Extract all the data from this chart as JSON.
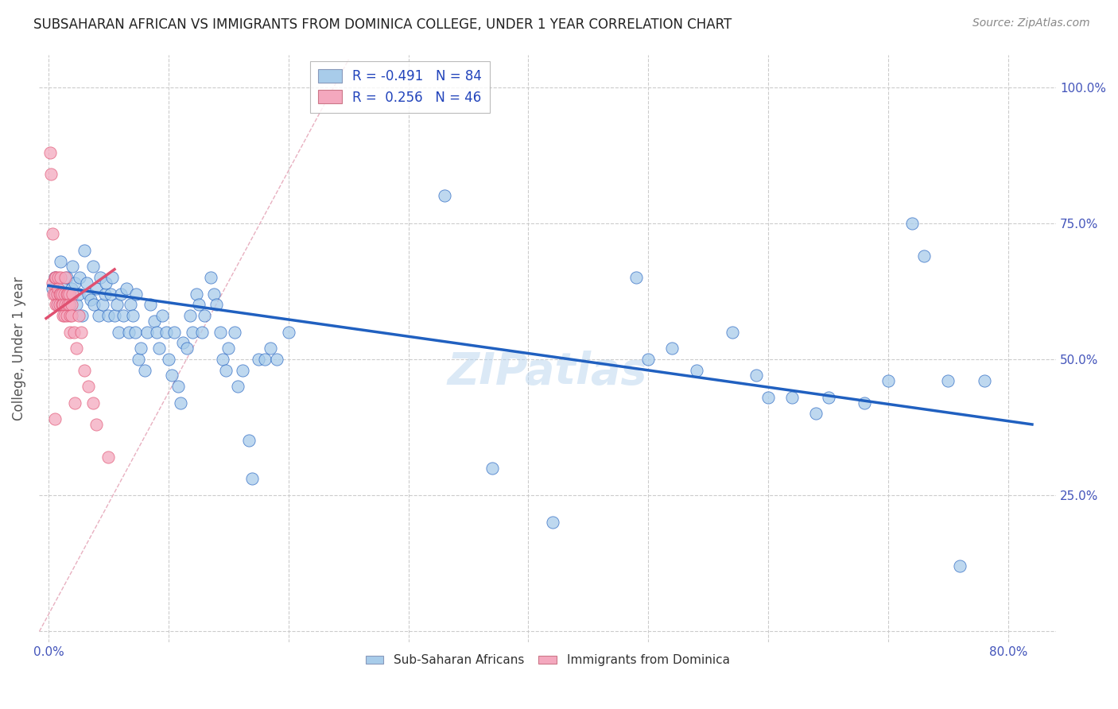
{
  "title": "SUBSAHARAN AFRICAN VS IMMIGRANTS FROM DOMINICA COLLEGE, UNDER 1 YEAR CORRELATION CHART",
  "source": "Source: ZipAtlas.com",
  "ylabel": "College, Under 1 year",
  "x_ticks": [
    0.0,
    0.1,
    0.2,
    0.3,
    0.4,
    0.5,
    0.6,
    0.7,
    0.8
  ],
  "y_ticks": [
    0.0,
    0.25,
    0.5,
    0.75,
    1.0
  ],
  "y_tick_labels_right": [
    "",
    "25.0%",
    "50.0%",
    "75.0%",
    "100.0%"
  ],
  "xlim": [
    -0.008,
    0.84
  ],
  "ylim": [
    -0.02,
    1.06
  ],
  "color_blue": "#A8CCEA",
  "color_pink": "#F4A8BE",
  "line_blue": "#2060C0",
  "line_pink": "#E05070",
  "diagonal_color": "#DDBBCC",
  "watermark": "ZIPatlas",
  "scatter_blue": [
    [
      0.003,
      0.63
    ],
    [
      0.005,
      0.65
    ],
    [
      0.007,
      0.62
    ],
    [
      0.008,
      0.6
    ],
    [
      0.01,
      0.68
    ],
    [
      0.012,
      0.63
    ],
    [
      0.013,
      0.61
    ],
    [
      0.015,
      0.65
    ],
    [
      0.016,
      0.62
    ],
    [
      0.018,
      0.6
    ],
    [
      0.019,
      0.63
    ],
    [
      0.02,
      0.67
    ],
    [
      0.022,
      0.64
    ],
    [
      0.023,
      0.6
    ],
    [
      0.025,
      0.62
    ],
    [
      0.026,
      0.65
    ],
    [
      0.028,
      0.58
    ],
    [
      0.03,
      0.7
    ],
    [
      0.032,
      0.64
    ],
    [
      0.033,
      0.62
    ],
    [
      0.035,
      0.61
    ],
    [
      0.037,
      0.67
    ],
    [
      0.038,
      0.6
    ],
    [
      0.04,
      0.63
    ],
    [
      0.042,
      0.58
    ],
    [
      0.043,
      0.65
    ],
    [
      0.045,
      0.6
    ],
    [
      0.047,
      0.62
    ],
    [
      0.048,
      0.64
    ],
    [
      0.05,
      0.58
    ],
    [
      0.052,
      0.62
    ],
    [
      0.053,
      0.65
    ],
    [
      0.055,
      0.58
    ],
    [
      0.057,
      0.6
    ],
    [
      0.058,
      0.55
    ],
    [
      0.06,
      0.62
    ],
    [
      0.062,
      0.58
    ],
    [
      0.065,
      0.63
    ],
    [
      0.067,
      0.55
    ],
    [
      0.068,
      0.6
    ],
    [
      0.07,
      0.58
    ],
    [
      0.072,
      0.55
    ],
    [
      0.073,
      0.62
    ],
    [
      0.075,
      0.5
    ],
    [
      0.077,
      0.52
    ],
    [
      0.08,
      0.48
    ],
    [
      0.082,
      0.55
    ],
    [
      0.085,
      0.6
    ],
    [
      0.088,
      0.57
    ],
    [
      0.09,
      0.55
    ],
    [
      0.092,
      0.52
    ],
    [
      0.095,
      0.58
    ],
    [
      0.098,
      0.55
    ],
    [
      0.1,
      0.5
    ],
    [
      0.103,
      0.47
    ],
    [
      0.105,
      0.55
    ],
    [
      0.108,
      0.45
    ],
    [
      0.11,
      0.42
    ],
    [
      0.112,
      0.53
    ],
    [
      0.115,
      0.52
    ],
    [
      0.118,
      0.58
    ],
    [
      0.12,
      0.55
    ],
    [
      0.123,
      0.62
    ],
    [
      0.125,
      0.6
    ],
    [
      0.128,
      0.55
    ],
    [
      0.13,
      0.58
    ],
    [
      0.135,
      0.65
    ],
    [
      0.138,
      0.62
    ],
    [
      0.14,
      0.6
    ],
    [
      0.143,
      0.55
    ],
    [
      0.145,
      0.5
    ],
    [
      0.148,
      0.48
    ],
    [
      0.15,
      0.52
    ],
    [
      0.155,
      0.55
    ],
    [
      0.158,
      0.45
    ],
    [
      0.162,
      0.48
    ],
    [
      0.167,
      0.35
    ],
    [
      0.17,
      0.28
    ],
    [
      0.175,
      0.5
    ],
    [
      0.18,
      0.5
    ],
    [
      0.185,
      0.52
    ],
    [
      0.19,
      0.5
    ],
    [
      0.2,
      0.55
    ],
    [
      0.33,
      0.8
    ],
    [
      0.37,
      0.3
    ],
    [
      0.42,
      0.2
    ],
    [
      0.49,
      0.65
    ],
    [
      0.5,
      0.5
    ],
    [
      0.52,
      0.52
    ],
    [
      0.54,
      0.48
    ],
    [
      0.57,
      0.55
    ],
    [
      0.59,
      0.47
    ],
    [
      0.6,
      0.43
    ],
    [
      0.62,
      0.43
    ],
    [
      0.64,
      0.4
    ],
    [
      0.65,
      0.43
    ],
    [
      0.68,
      0.42
    ],
    [
      0.7,
      0.46
    ],
    [
      0.72,
      0.75
    ],
    [
      0.73,
      0.69
    ],
    [
      0.75,
      0.46
    ],
    [
      0.76,
      0.12
    ],
    [
      0.78,
      0.46
    ]
  ],
  "scatter_pink": [
    [
      0.001,
      0.88
    ],
    [
      0.002,
      0.84
    ],
    [
      0.003,
      0.73
    ],
    [
      0.003,
      0.64
    ],
    [
      0.004,
      0.62
    ],
    [
      0.005,
      0.65
    ],
    [
      0.005,
      0.62
    ],
    [
      0.006,
      0.6
    ],
    [
      0.006,
      0.65
    ],
    [
      0.007,
      0.62
    ],
    [
      0.007,
      0.6
    ],
    [
      0.008,
      0.65
    ],
    [
      0.008,
      0.63
    ],
    [
      0.009,
      0.62
    ],
    [
      0.009,
      0.6
    ],
    [
      0.01,
      0.65
    ],
    [
      0.01,
      0.62
    ],
    [
      0.011,
      0.6
    ],
    [
      0.011,
      0.62
    ],
    [
      0.012,
      0.58
    ],
    [
      0.012,
      0.6
    ],
    [
      0.013,
      0.58
    ],
    [
      0.013,
      0.62
    ],
    [
      0.014,
      0.6
    ],
    [
      0.014,
      0.65
    ],
    [
      0.015,
      0.62
    ],
    [
      0.015,
      0.58
    ],
    [
      0.016,
      0.62
    ],
    [
      0.016,
      0.6
    ],
    [
      0.017,
      0.62
    ],
    [
      0.017,
      0.6
    ],
    [
      0.018,
      0.58
    ],
    [
      0.018,
      0.55
    ],
    [
      0.019,
      0.6
    ],
    [
      0.019,
      0.58
    ],
    [
      0.02,
      0.62
    ],
    [
      0.021,
      0.55
    ],
    [
      0.022,
      0.42
    ],
    [
      0.023,
      0.52
    ],
    [
      0.025,
      0.58
    ],
    [
      0.027,
      0.55
    ],
    [
      0.03,
      0.48
    ],
    [
      0.033,
      0.45
    ],
    [
      0.037,
      0.42
    ],
    [
      0.005,
      0.39
    ],
    [
      0.04,
      0.38
    ],
    [
      0.05,
      0.32
    ]
  ],
  "trendline_blue": {
    "x_start": 0.0,
    "x_end": 0.82,
    "y_start": 0.635,
    "y_end": 0.38
  },
  "trendline_pink": {
    "x_start": -0.002,
    "x_end": 0.055,
    "y_start": 0.575,
    "y_end": 0.665
  }
}
